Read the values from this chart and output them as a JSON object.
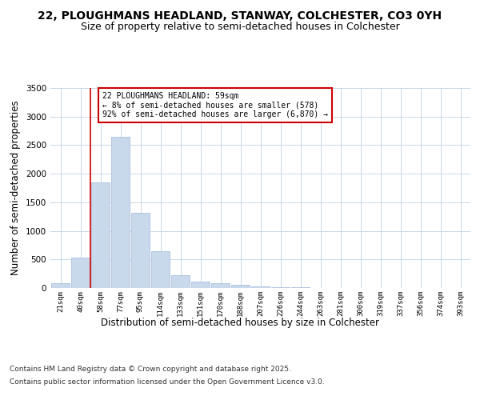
{
  "title": "22, PLOUGHMANS HEADLAND, STANWAY, COLCHESTER, CO3 0YH",
  "subtitle": "Size of property relative to semi-detached houses in Colchester",
  "xlabel": "Distribution of semi-detached houses by size in Colchester",
  "ylabel": "Number of semi-detached properties",
  "categories": [
    "21sqm",
    "40sqm",
    "58sqm",
    "77sqm",
    "95sqm",
    "114sqm",
    "133sqm",
    "151sqm",
    "170sqm",
    "188sqm",
    "207sqm",
    "226sqm",
    "244sqm",
    "263sqm",
    "281sqm",
    "300sqm",
    "319sqm",
    "337sqm",
    "356sqm",
    "374sqm",
    "393sqm"
  ],
  "values": [
    80,
    530,
    1850,
    2640,
    1320,
    640,
    230,
    115,
    80,
    55,
    30,
    15,
    8,
    3,
    2,
    1,
    1,
    0,
    0,
    0,
    0
  ],
  "bar_color": "#c9d9ec",
  "bar_edge_color": "#a0b8d8",
  "annotation_text": "22 PLOUGHMANS HEADLAND: 59sqm\n← 8% of semi-detached houses are smaller (578)\n92% of semi-detached houses are larger (6,870) →",
  "annotation_box_color": "#ffffff",
  "annotation_box_edge_color": "#cc0000",
  "vline_color": "#cc0000",
  "vline_x": 1.5,
  "ylim": [
    0,
    3500
  ],
  "yticks": [
    0,
    500,
    1000,
    1500,
    2000,
    2500,
    3000,
    3500
  ],
  "background_color": "#ffffff",
  "grid_color": "#c8d8e8",
  "footer_line1": "Contains HM Land Registry data © Crown copyright and database right 2025.",
  "footer_line2": "Contains public sector information licensed under the Open Government Licence v3.0.",
  "title_fontsize": 10,
  "subtitle_fontsize": 9,
  "axis_label_fontsize": 8.5,
  "tick_fontsize": 6.5,
  "annotation_fontsize": 7,
  "footer_fontsize": 6.5
}
